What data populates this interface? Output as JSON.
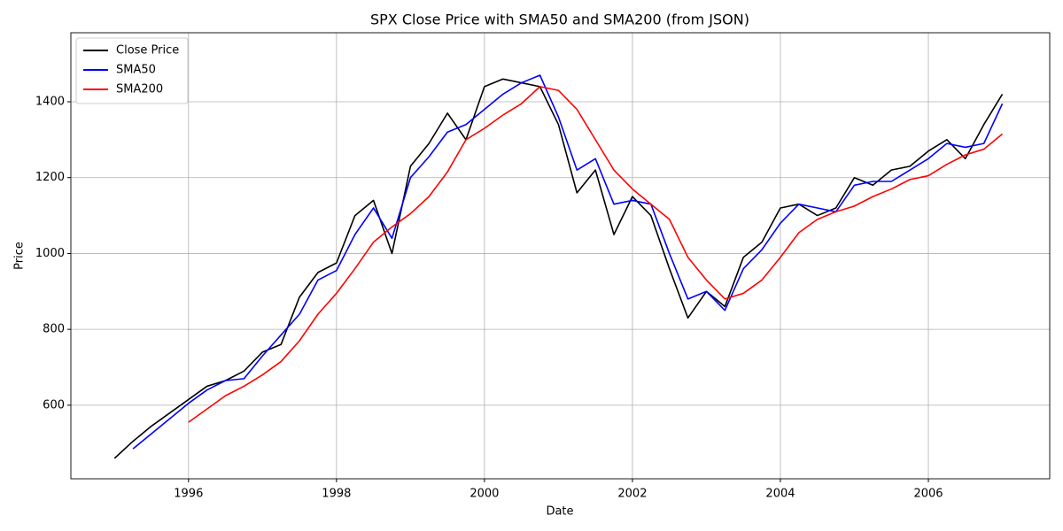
{
  "chart_data": {
    "type": "line",
    "title": "SPX Close Price with SMA50 and SMA200 (from JSON)",
    "xlabel": "Date",
    "ylabel": "Price",
    "x": [
      1995.0,
      1995.25,
      1995.5,
      1995.75,
      1996.0,
      1996.25,
      1996.5,
      1996.75,
      1997.0,
      1997.25,
      1997.5,
      1997.75,
      1998.0,
      1998.25,
      1998.5,
      1998.75,
      1999.0,
      1999.25,
      1999.5,
      1999.75,
      2000.0,
      2000.25,
      2000.5,
      2000.75,
      2001.0,
      2001.25,
      2001.5,
      2001.75,
      2002.0,
      2002.25,
      2002.5,
      2002.75,
      2003.0,
      2003.25,
      2003.5,
      2003.75,
      2004.0,
      2004.25,
      2004.5,
      2004.75,
      2005.0,
      2005.25,
      2005.5,
      2005.75,
      2006.0,
      2006.25,
      2006.5,
      2006.75,
      2007.0
    ],
    "series": [
      {
        "name": "Close Price",
        "color": "#000000",
        "values": [
          460,
          505,
          545,
          580,
          615,
          650,
          665,
          690,
          740,
          760,
          885,
          950,
          975,
          1100,
          1140,
          1000,
          1230,
          1290,
          1370,
          1300,
          1440,
          1460,
          1450,
          1440,
          1340,
          1160,
          1220,
          1050,
          1150,
          1100,
          960,
          830,
          900,
          860,
          990,
          1030,
          1120,
          1130,
          1100,
          1120,
          1200,
          1180,
          1220,
          1230,
          1270,
          1300,
          1250,
          1340,
          1420
        ]
      },
      {
        "name": "SMA50",
        "color": "#0000ff",
        "values": [
          null,
          485,
          525,
          565,
          605,
          640,
          665,
          670,
          730,
          785,
          840,
          930,
          955,
          1050,
          1120,
          1040,
          1200,
          1255,
          1320,
          1340,
          1380,
          1420,
          1450,
          1470,
          1360,
          1220,
          1250,
          1130,
          1140,
          1130,
          1000,
          880,
          900,
          850,
          960,
          1010,
          1080,
          1130,
          1120,
          1110,
          1180,
          1190,
          1190,
          1220,
          1250,
          1290,
          1280,
          1290,
          1395
        ]
      },
      {
        "name": "SMA200",
        "color": "#ff0000",
        "values": [
          null,
          null,
          null,
          null,
          555,
          590,
          625,
          650,
          680,
          715,
          770,
          840,
          895,
          960,
          1030,
          1070,
          1105,
          1150,
          1215,
          1300,
          1330,
          1365,
          1395,
          1440,
          1430,
          1380,
          1300,
          1220,
          1170,
          1130,
          1090,
          990,
          930,
          880,
          895,
          930,
          990,
          1055,
          1090,
          1110,
          1125,
          1150,
          1170,
          1195,
          1205,
          1235,
          1260,
          1275,
          1315
        ]
      }
    ],
    "xlim": [
      1994.41,
      2007.64
    ],
    "xticks": [
      1996,
      1998,
      2000,
      2002,
      2004,
      2006
    ],
    "ylim": [
      406,
      1582
    ],
    "yticks": [
      600,
      800,
      1000,
      1200,
      1400
    ],
    "grid": true,
    "legend": "upper-left"
  }
}
